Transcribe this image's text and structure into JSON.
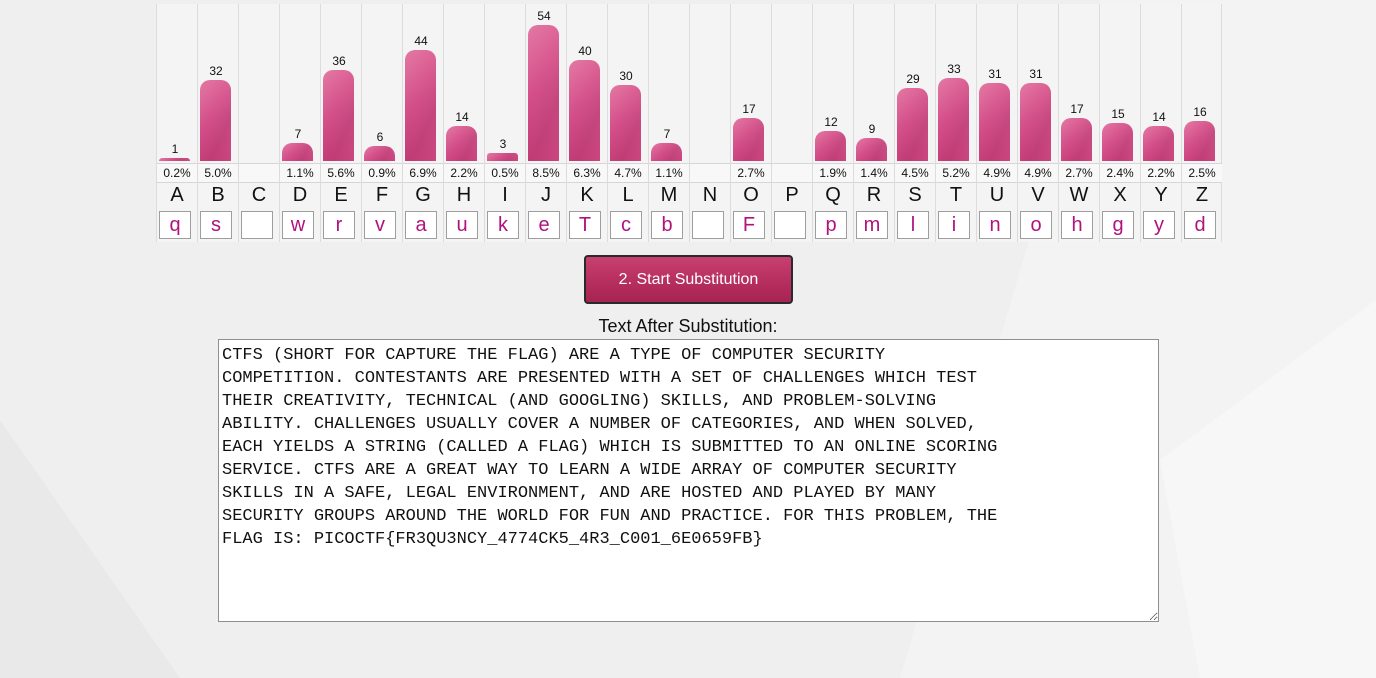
{
  "frequency_table": {
    "letters": [
      "A",
      "B",
      "C",
      "D",
      "E",
      "F",
      "G",
      "H",
      "I",
      "J",
      "K",
      "L",
      "M",
      "N",
      "O",
      "P",
      "Q",
      "R",
      "S",
      "T",
      "U",
      "V",
      "W",
      "X",
      "Y",
      "Z"
    ],
    "counts": [
      1,
      32,
      null,
      7,
      36,
      6,
      44,
      14,
      3,
      54,
      40,
      30,
      7,
      null,
      17,
      null,
      12,
      9,
      29,
      33,
      31,
      31,
      17,
      15,
      14,
      16
    ],
    "percents": [
      "0.2%",
      "5.0%",
      "",
      "1.1%",
      "5.6%",
      "0.9%",
      "6.9%",
      "2.2%",
      "0.5%",
      "8.5%",
      "6.3%",
      "4.7%",
      "1.1%",
      "",
      "2.7%",
      "",
      "1.9%",
      "1.4%",
      "4.5%",
      "5.2%",
      "4.9%",
      "4.9%",
      "2.7%",
      "2.4%",
      "2.2%",
      "2.5%"
    ],
    "substitutions": [
      "q",
      "s",
      "",
      "w",
      "r",
      "v",
      "a",
      "u",
      "k",
      "e",
      "T",
      "c",
      "b",
      "",
      "F",
      "",
      "p",
      "m",
      "l",
      "i",
      "n",
      "o",
      "h",
      "g",
      "y",
      "d"
    ]
  },
  "colors": {
    "bar": "#d4508a",
    "substitution_text": "#b0127e",
    "button": "#b8305f"
  },
  "start_button": {
    "label": "2. Start Substitution"
  },
  "result": {
    "label": "Text After Substitution:",
    "text": "CTFS (SHORT FOR CAPTURE THE FLAG) ARE A TYPE OF COMPUTER SECURITY\nCOMPETITION. CONTESTANTS ARE PRESENTED WITH A SET OF CHALLENGES WHICH TEST\nTHEIR CREATIVITY, TECHNICAL (AND GOOGLING) SKILLS, AND PROBLEM-SOLVING\nABILITY. CHALLENGES USUALLY COVER A NUMBER OF CATEGORIES, AND WHEN SOLVED,\nEACH YIELDS A STRING (CALLED A FLAG) WHICH IS SUBMITTED TO AN ONLINE SCORING\nSERVICE. CTFS ARE A GREAT WAY TO LEARN A WIDE ARRAY OF COMPUTER SECURITY\nSKILLS IN A SAFE, LEGAL ENVIRONMENT, AND ARE HOSTED AND PLAYED BY MANY\nSECURITY GROUPS AROUND THE WORLD FOR FUN AND PRACTICE. FOR THIS PROBLEM, THE\nFLAG IS: PICOCTF{FR3QU3NCY_4774CK5_4R3_C001_6E0659FB}"
  }
}
